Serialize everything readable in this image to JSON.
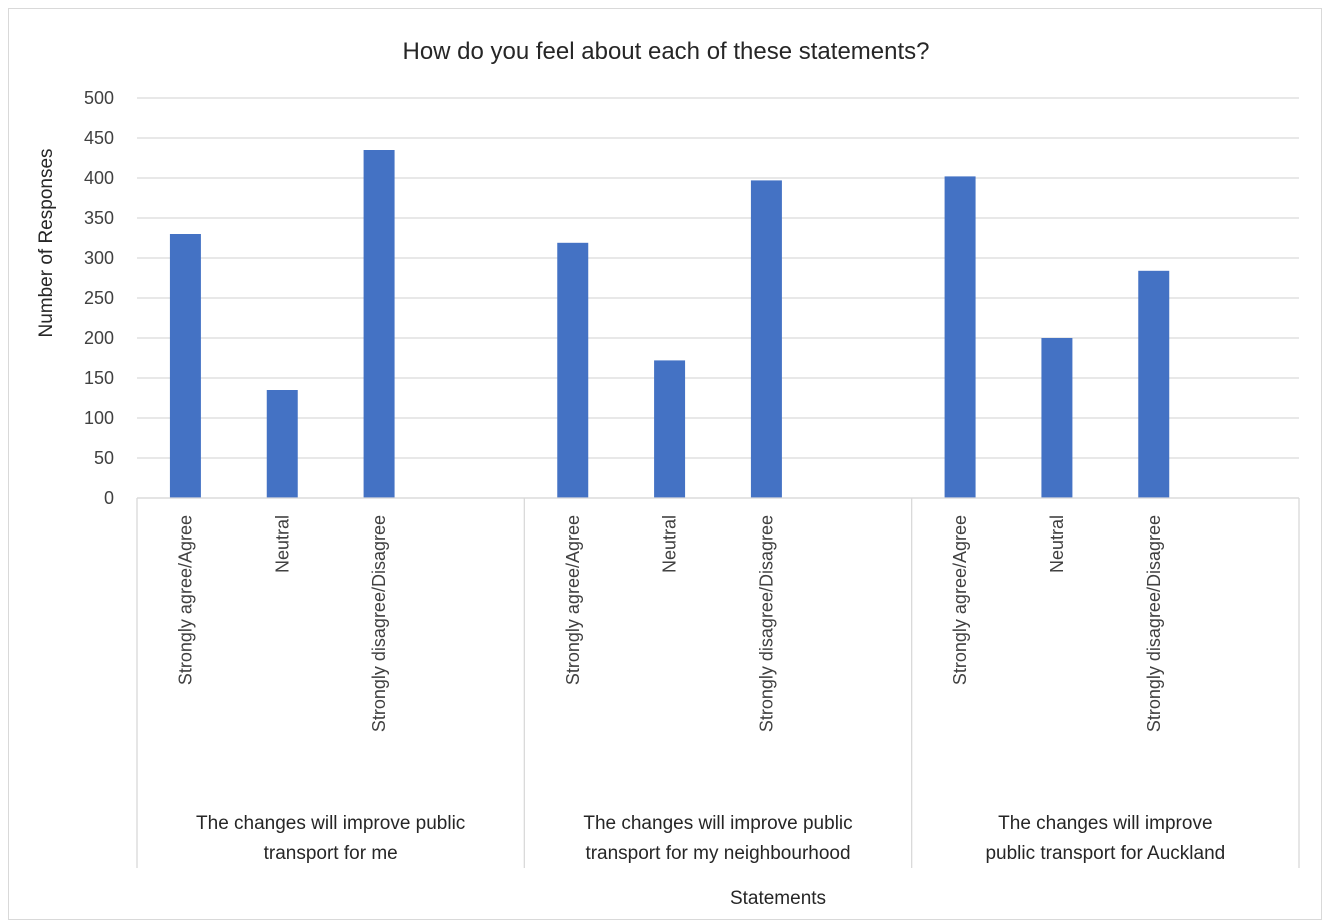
{
  "chart_data": {
    "type": "bar",
    "title": "How do you feel about each of these statements?",
    "xlabel": "Statements",
    "ylabel": "Number of Responses",
    "ylim": [
      0,
      500
    ],
    "yticks": [
      0,
      50,
      100,
      150,
      200,
      250,
      300,
      350,
      400,
      450,
      500
    ],
    "grid": true,
    "legend": "none",
    "bar_color": "#4472c4",
    "groups": [
      {
        "label_lines": [
          "The changes will improve public",
          "transport for me"
        ],
        "categories": [
          "Strongly agree/Agree",
          "Neutral",
          "Strongly disagree/Disagree"
        ],
        "values": [
          330,
          135,
          435
        ]
      },
      {
        "label_lines": [
          "The changes will improve public",
          "transport for my neighbourhood"
        ],
        "categories": [
          "Strongly agree/Agree",
          "Neutral",
          "Strongly disagree/Disagree"
        ],
        "values": [
          319,
          172,
          397
        ]
      },
      {
        "label_lines": [
          "The changes will improve",
          "public transport for Auckland"
        ],
        "categories": [
          "Strongly agree/Agree",
          "Neutral",
          "Strongly disagree/Disagree"
        ],
        "values": [
          402,
          200,
          284
        ]
      }
    ]
  }
}
